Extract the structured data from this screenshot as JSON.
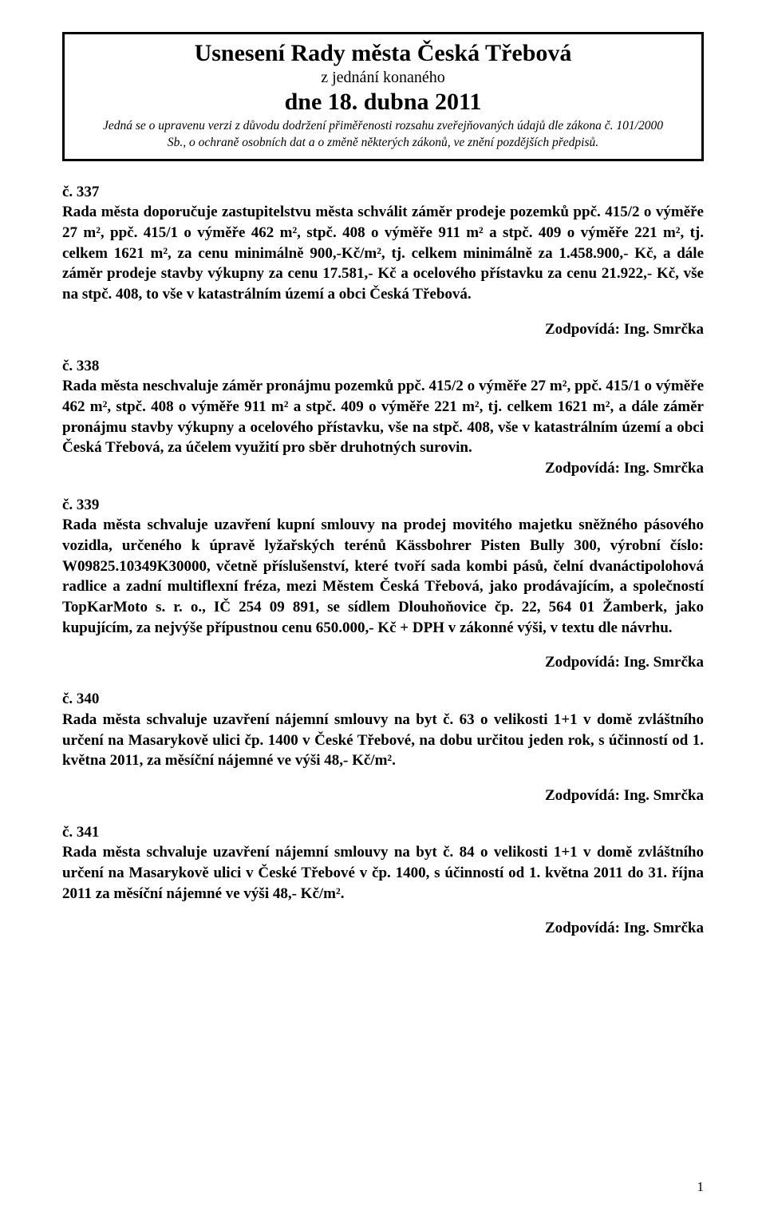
{
  "header": {
    "title": "Usnesení Rady města Česká Třebová",
    "sub1": "z jednání konaného",
    "date": "dne 18. dubna 2011",
    "note_line1": "Jedná se o upravenu verzi z důvodu dodržení přiměřenosti rozsahu zveřejňovaných údajů dle zákona č. 101/2000",
    "note_line2": "Sb., o ochraně osobních dat a o změně některých zákonů, ve znění pozdějších předpisů."
  },
  "responsible_label": "Zodpovídá: Ing. Smrčka",
  "resolutions": [
    {
      "num": "č. 337",
      "body": "Rada města doporučuje zastupitelstvu města schválit záměr prodeje pozemků ppč. 415/2 o výměře 27 m², ppč. 415/1 o výměře 462 m², stpč. 408 o výměře 911 m² a stpč. 409 o výměře 221 m², tj. celkem 1621 m², za  cenu minimálně 900,-Kč/m², tj. celkem minimálně za 1.458.900,- Kč, a dále  záměr prodeje stavby výkupny  za cenu 17.581,- Kč a ocelového přístavku  za cenu 21.922,- Kč, vše na stpč. 408, to vše v katastrálním území a obci Česká Třebová.",
      "show_resp": true,
      "resp_tight": false
    },
    {
      "num": "č. 338",
      "body": "Rada města neschvaluje záměr pronájmu pozemků ppč. 415/2 o výměře 27 m², ppč. 415/1 o výměře 462 m², stpč. 408 o výměře 911 m² a stpč. 409 o výměře 221 m², tj. celkem 1621 m², a dále  záměr pronájmu stavby výkupny a ocelového přístavku, vše na stpč. 408, vše v katastrálním území a obci Česká Třebová, za účelem využití pro sběr druhotných surovin.",
      "show_resp": true,
      "resp_tight": true
    },
    {
      "num": "č. 339",
      "body": "Rada města schvaluje uzavření kupní smlouvy na prodej movitého majetku sněžného pásového vozidla, určeného k úpravě lyžařských terénů Kässbohrer Pisten Bully 300, výrobní číslo: W09825.10349K30000, včetně příslušenství, které tvoří sada kombi pásů, čelní dvanáctipolohová radlice a zadní multiflexní fréza, mezi Městem Česká Třebová, jako prodávajícím, a společností TopKarMoto s. r. o., IČ 254 09 891, se sídlem Dlouhoňovice čp. 22, 564 01  Žamberk, jako kupujícím, za nejvýše přípustnou cenu 650.000,- Kč + DPH v zákonné výši, v textu dle návrhu.",
      "show_resp": true,
      "resp_tight": false
    },
    {
      "num": "č. 340",
      "body": "Rada města schvaluje uzavření nájemní smlouvy na  byt č. 63  o velikosti 1+1 v domě zvláštního určení na Masarykově ulici čp. 1400 v České Třebové, na dobu určitou jeden rok, s účinností od 1. května 2011, za měsíční nájemné ve výši  48,- Kč/m².",
      "show_resp": true,
      "resp_tight": false
    },
    {
      "num": "č. 341",
      "body": "Rada města schvaluje uzavření nájemní smlouvy na byt č. 84 o velikosti 1+1  v domě zvláštního určení na Masarykově ulici v České Třebové v čp. 1400, s účinností od 1. května 2011 do 31. října 2011 za měsíční nájemné ve výši 48,- Kč/m².",
      "show_resp": true,
      "resp_tight": false
    }
  ],
  "page_number": "1"
}
